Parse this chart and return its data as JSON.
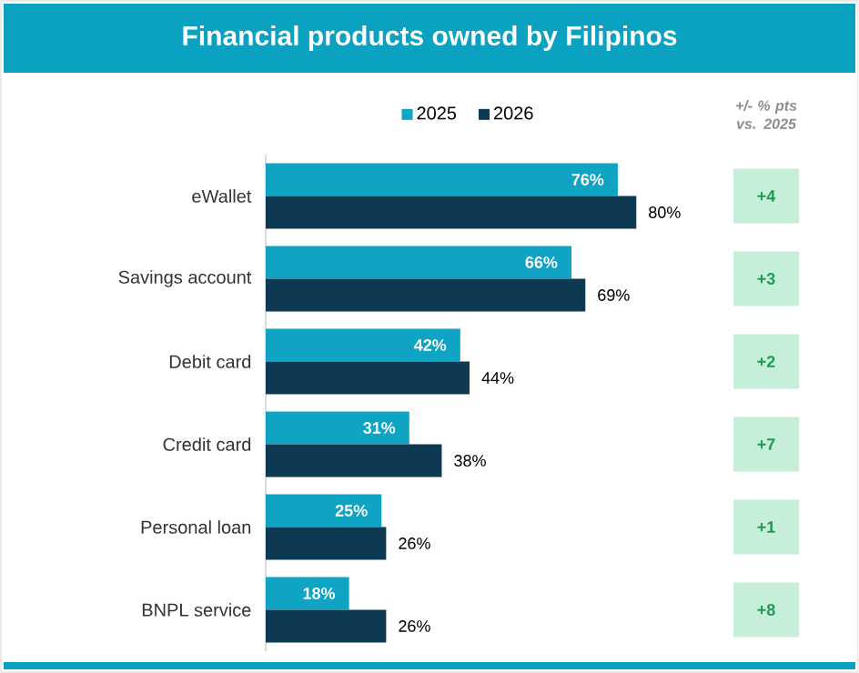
{
  "chart_data": {
    "type": "bar",
    "orientation": "horizontal",
    "title": "Financial products owned by Filipinos",
    "categories": [
      "eWallet",
      "Savings account",
      "Debit card",
      "Credit card",
      "Personal loan",
      "BNPL service"
    ],
    "series": [
      {
        "name": "2025",
        "color": "#0fa3c4",
        "values": [
          76,
          66,
          42,
          31,
          25,
          18
        ],
        "value_labels": [
          "76%",
          "66%",
          "42%",
          "31%",
          "25%",
          "18%"
        ]
      },
      {
        "name": "2026",
        "color": "#0d3a52",
        "values": [
          80,
          69,
          44,
          38,
          26,
          26
        ],
        "value_labels": [
          "80%",
          "69%",
          "44%",
          "38%",
          "26%",
          "26%"
        ]
      }
    ],
    "tick_labels": "y",
    "legend": "top",
    "annotations": [
      "+/- % pts vs. 2025",
      "+4",
      "+3",
      "+2",
      "+7",
      "+1",
      "+8"
    ]
  }
}
